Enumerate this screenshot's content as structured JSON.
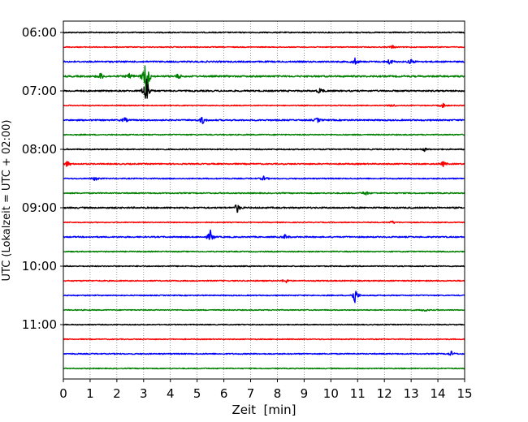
{
  "chart_data": {
    "type": "line",
    "xlabel": "Zeit  [min]",
    "ylabel": "UTC (Lokalzeit = UTC + 02:00)",
    "xlim": [
      0,
      15
    ],
    "xticks": [
      0,
      1,
      2,
      3,
      4,
      5,
      6,
      7,
      8,
      9,
      10,
      11,
      12,
      13,
      14,
      15
    ],
    "grid": "vertical dotted",
    "ytick_labels": [
      "06:00",
      "07:00",
      "08:00",
      "09:00",
      "10:00",
      "11:00"
    ],
    "trace_colors": [
      "#000000",
      "#ff0000",
      "#0000ff",
      "#008000"
    ],
    "traces": [
      {
        "start": "06:00",
        "color": "#000000",
        "noise": 1.2,
        "events": []
      },
      {
        "start": "06:15",
        "color": "#ff0000",
        "noise": 1.0,
        "events": [
          {
            "t": 12.3,
            "amp": 2
          }
        ]
      },
      {
        "start": "06:30",
        "color": "#0000ff",
        "noise": 1.6,
        "events": [
          {
            "t": 10.9,
            "amp": 4
          },
          {
            "t": 12.2,
            "amp": 4
          },
          {
            "t": 13.0,
            "amp": 3
          }
        ]
      },
      {
        "start": "06:45",
        "color": "#008000",
        "noise": 1.8,
        "events": [
          {
            "t": 1.4,
            "amp": 4
          },
          {
            "t": 2.5,
            "amp": 4
          },
          {
            "t": 3.1,
            "amp": 30
          },
          {
            "t": 4.3,
            "amp": 3
          }
        ]
      },
      {
        "start": "07:00",
        "color": "#000000",
        "noise": 1.6,
        "events": [
          {
            "t": 3.1,
            "amp": 22
          },
          {
            "t": 9.6,
            "amp": 4
          }
        ]
      },
      {
        "start": "07:15",
        "color": "#ff0000",
        "noise": 1.0,
        "events": [
          {
            "t": 12.3,
            "amp": 2
          },
          {
            "t": 14.2,
            "amp": 3
          }
        ]
      },
      {
        "start": "07:30",
        "color": "#0000ff",
        "noise": 1.5,
        "events": [
          {
            "t": 2.3,
            "amp": 3
          },
          {
            "t": 5.2,
            "amp": 5
          },
          {
            "t": 9.5,
            "amp": 3
          }
        ]
      },
      {
        "start": "07:45",
        "color": "#008000",
        "noise": 1.2,
        "events": []
      },
      {
        "start": "08:00",
        "color": "#000000",
        "noise": 1.2,
        "events": [
          {
            "t": 13.5,
            "amp": 2
          }
        ]
      },
      {
        "start": "08:15",
        "color": "#ff0000",
        "noise": 1.4,
        "events": [
          {
            "t": 0.15,
            "amp": 4
          },
          {
            "t": 14.2,
            "amp": 3
          }
        ]
      },
      {
        "start": "08:30",
        "color": "#0000ff",
        "noise": 1.2,
        "events": [
          {
            "t": 1.2,
            "amp": 3
          },
          {
            "t": 7.5,
            "amp": 3
          }
        ]
      },
      {
        "start": "08:45",
        "color": "#008000",
        "noise": 1.2,
        "events": [
          {
            "t": 11.3,
            "amp": 3
          }
        ]
      },
      {
        "start": "09:00",
        "color": "#000000",
        "noise": 1.6,
        "events": [
          {
            "t": 6.5,
            "amp": 6
          }
        ]
      },
      {
        "start": "09:15",
        "color": "#ff0000",
        "noise": 1.0,
        "events": [
          {
            "t": 12.3,
            "amp": 2
          }
        ]
      },
      {
        "start": "09:30",
        "color": "#0000ff",
        "noise": 1.4,
        "events": [
          {
            "t": 5.5,
            "amp": 8
          },
          {
            "t": 8.3,
            "amp": 3
          }
        ]
      },
      {
        "start": "09:45",
        "color": "#008000",
        "noise": 1.1,
        "events": []
      },
      {
        "start": "10:00",
        "color": "#000000",
        "noise": 1.1,
        "events": []
      },
      {
        "start": "10:15",
        "color": "#ff0000",
        "noise": 1.2,
        "events": [
          {
            "t": 8.3,
            "amp": 3
          }
        ]
      },
      {
        "start": "10:30",
        "color": "#0000ff",
        "noise": 1.1,
        "events": [
          {
            "t": 10.9,
            "amp": 11
          }
        ]
      },
      {
        "start": "10:45",
        "color": "#008000",
        "noise": 1.0,
        "events": [
          {
            "t": 13.5,
            "amp": 2
          }
        ]
      },
      {
        "start": "11:00",
        "color": "#000000",
        "noise": 1.0,
        "events": []
      },
      {
        "start": "11:15",
        "color": "#ff0000",
        "noise": 1.0,
        "events": []
      },
      {
        "start": "11:30",
        "color": "#0000ff",
        "noise": 1.2,
        "events": [
          {
            "t": 14.5,
            "amp": 3
          }
        ]
      },
      {
        "start": "11:45",
        "color": "#008000",
        "noise": 1.0,
        "events": []
      }
    ]
  }
}
